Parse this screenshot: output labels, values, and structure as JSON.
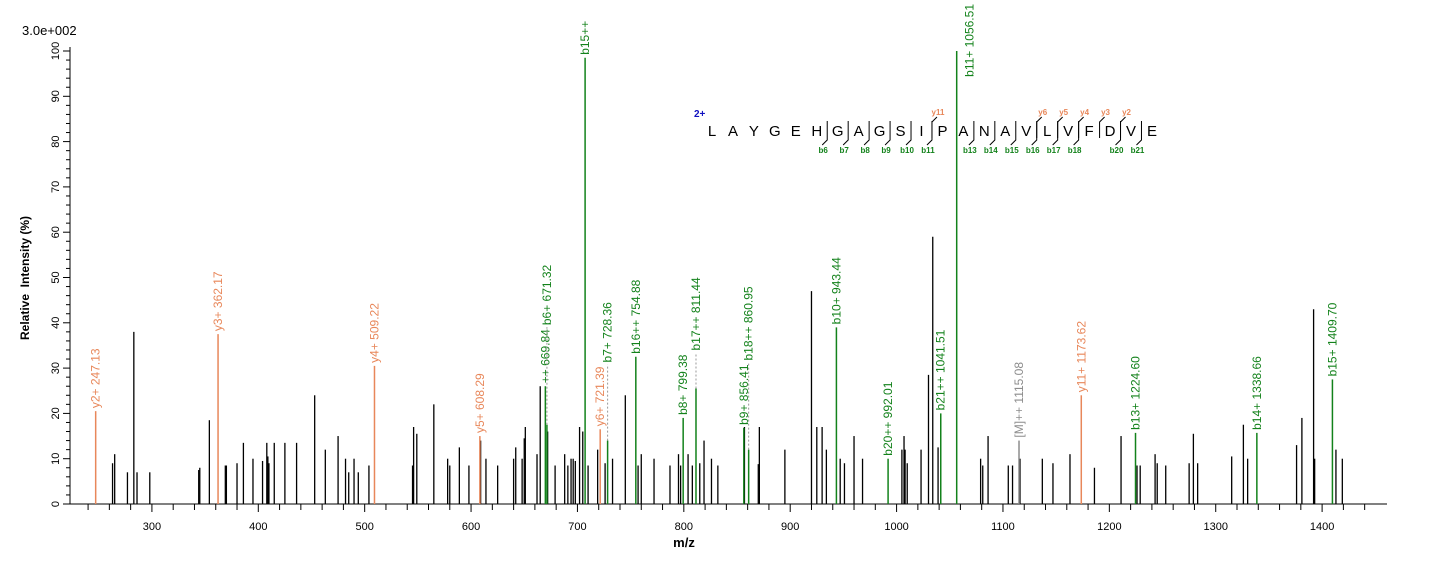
{
  "chart_data": {
    "type": "bar",
    "subtype": "mass-spectrum-sticks",
    "scale_label": "3.0e+002",
    "xlabel": "m/z",
    "ylabel": "Relative  Intensity (%)",
    "xlim": [
      223,
      1461
    ],
    "ylim": [
      0,
      100
    ],
    "x_tick_labels": [
      "300",
      "400",
      "500",
      "600",
      "700",
      "800",
      "900",
      "1000",
      "1100",
      "1200",
      "1300",
      "1400"
    ],
    "y_tick_labels": [
      "0",
      "10",
      "20",
      "30",
      "40",
      "50",
      "60",
      "70",
      "80",
      "90",
      "100"
    ],
    "grid": false,
    "colors": {
      "b_ion": "#13821b",
      "y_ion": "#e8875a",
      "precursor": "#8c8c8c",
      "unassigned": "#000000",
      "charge": "#1010c0"
    },
    "peaks": [
      {
        "mz": 263,
        "intensity": 9
      },
      {
        "mz": 265,
        "intensity": 11
      },
      {
        "mz": 277,
        "intensity": 7
      },
      {
        "mz": 283,
        "intensity": 38
      },
      {
        "mz": 286,
        "intensity": 7
      },
      {
        "mz": 298,
        "intensity": 7
      },
      {
        "mz": 344,
        "intensity": 7.5
      },
      {
        "mz": 345,
        "intensity": 8
      },
      {
        "mz": 354,
        "intensity": 18.5
      },
      {
        "mz": 369,
        "intensity": 8.5
      },
      {
        "mz": 370,
        "intensity": 8.5
      },
      {
        "mz": 380,
        "intensity": 9
      },
      {
        "mz": 386,
        "intensity": 13.5
      },
      {
        "mz": 395,
        "intensity": 10
      },
      {
        "mz": 404,
        "intensity": 9.5
      },
      {
        "mz": 408,
        "intensity": 13.5
      },
      {
        "mz": 409,
        "intensity": 10.5
      },
      {
        "mz": 410,
        "intensity": 9
      },
      {
        "mz": 415,
        "intensity": 13.5
      },
      {
        "mz": 425,
        "intensity": 13.5
      },
      {
        "mz": 436,
        "intensity": 13.5
      },
      {
        "mz": 453,
        "intensity": 24
      },
      {
        "mz": 463,
        "intensity": 12
      },
      {
        "mz": 475,
        "intensity": 15
      },
      {
        "mz": 482,
        "intensity": 10
      },
      {
        "mz": 485,
        "intensity": 7
      },
      {
        "mz": 490,
        "intensity": 10
      },
      {
        "mz": 494,
        "intensity": 7
      },
      {
        "mz": 504,
        "intensity": 8.5
      },
      {
        "mz": 545,
        "intensity": 8.5
      },
      {
        "mz": 546,
        "intensity": 17
      },
      {
        "mz": 549,
        "intensity": 15.5
      },
      {
        "mz": 565,
        "intensity": 22
      },
      {
        "mz": 578,
        "intensity": 10
      },
      {
        "mz": 580,
        "intensity": 8.5
      },
      {
        "mz": 589,
        "intensity": 12.5
      },
      {
        "mz": 598,
        "intensity": 8.5
      },
      {
        "mz": 609,
        "intensity": 14
      },
      {
        "mz": 614,
        "intensity": 10
      },
      {
        "mz": 625,
        "intensity": 8.5
      },
      {
        "mz": 640,
        "intensity": 10
      },
      {
        "mz": 642,
        "intensity": 12.5
      },
      {
        "mz": 648,
        "intensity": 10
      },
      {
        "mz": 650,
        "intensity": 14.5
      },
      {
        "mz": 651,
        "intensity": 17
      },
      {
        "mz": 662,
        "intensity": 11
      },
      {
        "mz": 665,
        "intensity": 26
      },
      {
        "mz": 672,
        "intensity": 16
      },
      {
        "mz": 679,
        "intensity": 8.5
      },
      {
        "mz": 688,
        "intensity": 11
      },
      {
        "mz": 691,
        "intensity": 8.5
      },
      {
        "mz": 694,
        "intensity": 10
      },
      {
        "mz": 696,
        "intensity": 10
      },
      {
        "mz": 698,
        "intensity": 9.5
      },
      {
        "mz": 702,
        "intensity": 17
      },
      {
        "mz": 705,
        "intensity": 16
      },
      {
        "mz": 710,
        "intensity": 8.5
      },
      {
        "mz": 719,
        "intensity": 12
      },
      {
        "mz": 726,
        "intensity": 9
      },
      {
        "mz": 733,
        "intensity": 10
      },
      {
        "mz": 745,
        "intensity": 24
      },
      {
        "mz": 757,
        "intensity": 8.5
      },
      {
        "mz": 760,
        "intensity": 11
      },
      {
        "mz": 772,
        "intensity": 10
      },
      {
        "mz": 787,
        "intensity": 8.5
      },
      {
        "mz": 795,
        "intensity": 11
      },
      {
        "mz": 797,
        "intensity": 8.5
      },
      {
        "mz": 804,
        "intensity": 11
      },
      {
        "mz": 808,
        "intensity": 8.5
      },
      {
        "mz": 815,
        "intensity": 9
      },
      {
        "mz": 819,
        "intensity": 14
      },
      {
        "mz": 826,
        "intensity": 10
      },
      {
        "mz": 832,
        "intensity": 8.5
      },
      {
        "mz": 857,
        "intensity": 17
      },
      {
        "mz": 871,
        "intensity": 17
      },
      {
        "mz": 870,
        "intensity": 8.8
      },
      {
        "mz": 895,
        "intensity": 12
      },
      {
        "mz": 920,
        "intensity": 47
      },
      {
        "mz": 925,
        "intensity": 17
      },
      {
        "mz": 930,
        "intensity": 17
      },
      {
        "mz": 934,
        "intensity": 12
      },
      {
        "mz": 947,
        "intensity": 10
      },
      {
        "mz": 951,
        "intensity": 9
      },
      {
        "mz": 960,
        "intensity": 15
      },
      {
        "mz": 968,
        "intensity": 10
      },
      {
        "mz": 1005,
        "intensity": 12
      },
      {
        "mz": 1007,
        "intensity": 15
      },
      {
        "mz": 1008,
        "intensity": 12
      },
      {
        "mz": 1010,
        "intensity": 9
      },
      {
        "mz": 1023,
        "intensity": 12
      },
      {
        "mz": 1030,
        "intensity": 28.5
      },
      {
        "mz": 1034,
        "intensity": 59
      },
      {
        "mz": 1039,
        "intensity": 12.5
      },
      {
        "mz": 1079,
        "intensity": 10
      },
      {
        "mz": 1081,
        "intensity": 8.5
      },
      {
        "mz": 1086,
        "intensity": 15
      },
      {
        "mz": 1105,
        "intensity": 8.5
      },
      {
        "mz": 1109,
        "intensity": 8.5
      },
      {
        "mz": 1116,
        "intensity": 10
      },
      {
        "mz": 1137,
        "intensity": 10
      },
      {
        "mz": 1147,
        "intensity": 9
      },
      {
        "mz": 1163,
        "intensity": 11
      },
      {
        "mz": 1186,
        "intensity": 8
      },
      {
        "mz": 1211,
        "intensity": 15
      },
      {
        "mz": 1226,
        "intensity": 8.5
      },
      {
        "mz": 1229,
        "intensity": 8.5
      },
      {
        "mz": 1243,
        "intensity": 11
      },
      {
        "mz": 1245,
        "intensity": 9
      },
      {
        "mz": 1253,
        "intensity": 8.5
      },
      {
        "mz": 1275,
        "intensity": 9
      },
      {
        "mz": 1279,
        "intensity": 15.5
      },
      {
        "mz": 1283,
        "intensity": 9
      },
      {
        "mz": 1315,
        "intensity": 10.5
      },
      {
        "mz": 1326,
        "intensity": 17.5
      },
      {
        "mz": 1330,
        "intensity": 10
      },
      {
        "mz": 1376,
        "intensity": 13
      },
      {
        "mz": 1381,
        "intensity": 19
      },
      {
        "mz": 1392,
        "intensity": 43
      },
      {
        "mz": 1393,
        "intensity": 10
      },
      {
        "mz": 1413,
        "intensity": 12
      },
      {
        "mz": 1419,
        "intensity": 10
      }
    ],
    "annotations": [
      {
        "label": "y2+ 247.13",
        "mz": 247.13,
        "intensity": 20.5,
        "ion": "y"
      },
      {
        "label": "y3+ 362.17",
        "mz": 362.17,
        "intensity": 37.5,
        "ion": "y"
      },
      {
        "label": "y4+ 509.22",
        "mz": 509.22,
        "intensity": 30.5,
        "ion": "y"
      },
      {
        "label": "y5+ 608.29",
        "mz": 608.29,
        "intensity": 15,
        "ion": "y"
      },
      {
        "label": "++ 669.84",
        "mz": 669.84,
        "intensity": 26,
        "ion": "b"
      },
      {
        "label": "b6+ 671.32",
        "mz": 671.32,
        "intensity": 17.5,
        "ion": "b"
      },
      {
        "label": "b15++",
        "mz": 707.2,
        "intensity": 98.5,
        "ion": "b"
      },
      {
        "label": "y6+ 721.39",
        "mz": 721.39,
        "intensity": 16.5,
        "ion": "y"
      },
      {
        "label": "b7+ 728.36",
        "mz": 728.36,
        "intensity": 14,
        "ion": "b"
      },
      {
        "label": "b16++ 754.88",
        "mz": 754.88,
        "intensity": 32.5,
        "ion": "b"
      },
      {
        "label": "b8+ 799.38",
        "mz": 799.38,
        "intensity": 19,
        "ion": "b"
      },
      {
        "label": "b17++ 811.44",
        "mz": 811.44,
        "intensity": 25.5,
        "ion": "b"
      },
      {
        "label": "b9+ 856.41",
        "mz": 856.41,
        "intensity": 16.8,
        "ion": "b"
      },
      {
        "label": "b18++ 860.95",
        "mz": 860.95,
        "intensity": 12,
        "ion": "b"
      },
      {
        "label": "b10+ 943.44",
        "mz": 943.44,
        "intensity": 39,
        "ion": "b"
      },
      {
        "label": "b20++ 992.01",
        "mz": 992.01,
        "intensity": 10,
        "ion": "b"
      },
      {
        "label": "b21++ 1041.51",
        "mz": 1041.51,
        "intensity": 20,
        "ion": "b"
      },
      {
        "label": "b11+ 1056.51",
        "mz": 1056.51,
        "intensity": 100,
        "ion": "b"
      },
      {
        "label": "[M]++ 1115.08",
        "mz": 1115.08,
        "intensity": 14,
        "ion": "precursor"
      },
      {
        "label": "y11+ 1173.62",
        "mz": 1173.62,
        "intensity": 24,
        "ion": "y"
      },
      {
        "label": "b13+ 1224.60",
        "mz": 1224.6,
        "intensity": 15.7,
        "ion": "b"
      },
      {
        "label": "b14+ 1338.66",
        "mz": 1338.66,
        "intensity": 15.7,
        "ion": "b"
      },
      {
        "label": "b15+ 1409.70",
        "mz": 1409.7,
        "intensity": 27.5,
        "ion": "b"
      }
    ],
    "sequence": {
      "charge": "2+",
      "residues": [
        "L",
        "A",
        "Y",
        "G",
        "E",
        "H",
        "G",
        "A",
        "G",
        "S",
        "I",
        "P",
        "A",
        "N",
        "A",
        "V",
        "L",
        "V",
        "F",
        "D",
        "V",
        "E"
      ],
      "b_ions": [
        {
          "label": "b6",
          "n": 6
        },
        {
          "label": "b7",
          "n": 7
        },
        {
          "label": "b8",
          "n": 8
        },
        {
          "label": "b9",
          "n": 9
        },
        {
          "label": "b10",
          "n": 10
        },
        {
          "label": "b11",
          "n": 11
        },
        {
          "label": "b13",
          "n": 13
        },
        {
          "label": "b14",
          "n": 14
        },
        {
          "label": "b15",
          "n": 15
        },
        {
          "label": "b16",
          "n": 16
        },
        {
          "label": "b17",
          "n": 17
        },
        {
          "label": "b18",
          "n": 18
        },
        {
          "label": "b20",
          "n": 20
        },
        {
          "label": "b21",
          "n": 21
        }
      ],
      "y_ions": [
        {
          "label": "y11",
          "n": 11
        },
        {
          "label": "y6",
          "n": 6
        },
        {
          "label": "y5",
          "n": 5
        },
        {
          "label": "y4",
          "n": 4
        },
        {
          "label": "y3",
          "n": 3
        },
        {
          "label": "y2",
          "n": 2
        }
      ]
    }
  }
}
